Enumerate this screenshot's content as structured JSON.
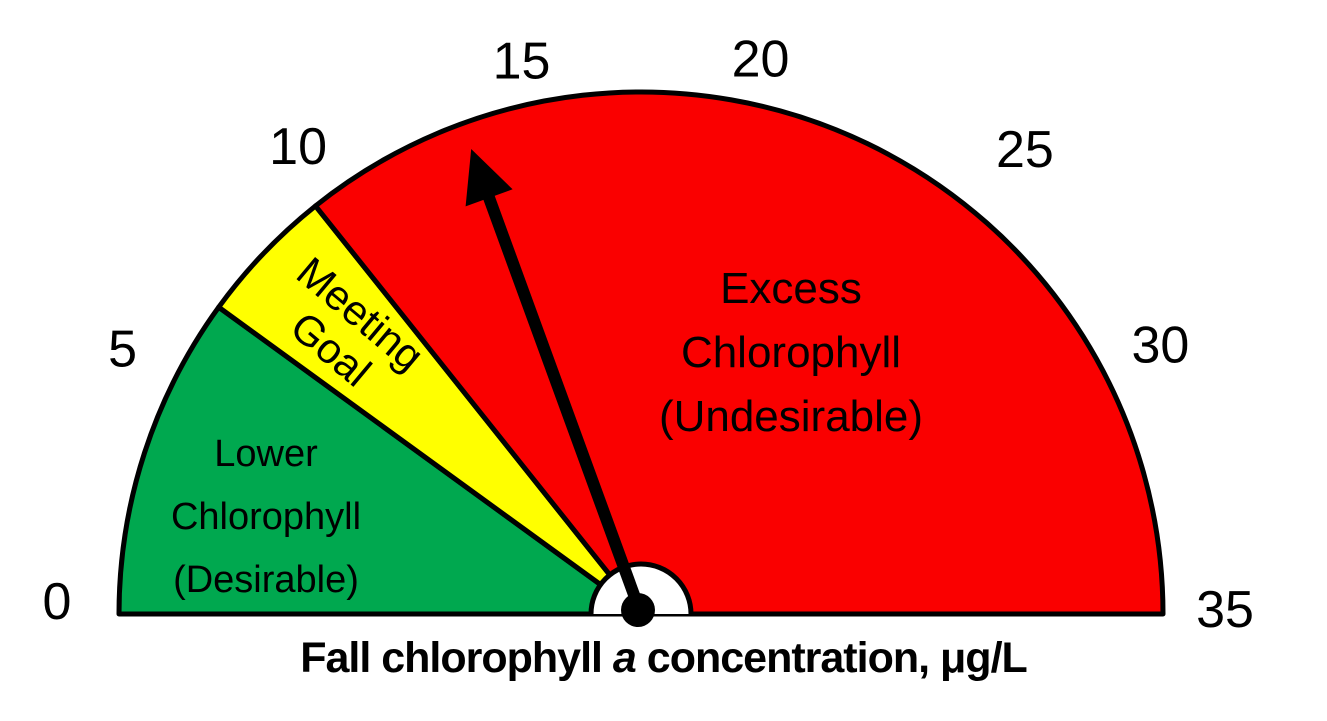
{
  "chart_data": {
    "type": "gauge",
    "title": {
      "prefix": "Fall chlorophyll ",
      "italic_word": "a",
      "suffix": " concentration, μg/L",
      "full": "Fall chlorophyll a concentration, μg/L"
    },
    "min": 0,
    "max": 35,
    "ticks": [
      0,
      5,
      10,
      15,
      20,
      25,
      30,
      35
    ],
    "zones": [
      {
        "from": 0,
        "to": 7,
        "color": "#00A84F",
        "label": "Lower Chlorophyll (Desirable)",
        "label_lines": [
          "Lower",
          "Chlorophyll",
          "(Desirable)"
        ]
      },
      {
        "from": 7,
        "to": 10,
        "color": "#FFFF00",
        "label": "Meeting Goal",
        "label_lines": [
          "Meeting",
          "Goal"
        ]
      },
      {
        "from": 10,
        "to": 35,
        "color": "#FA0000",
        "label": "Excess Chlorophyll (Undesirable)",
        "label_lines": [
          "Excess",
          "Chlorophyll",
          "(Undesirable)"
        ]
      }
    ],
    "needle_value": 13.6,
    "outline_color": "#000000",
    "needle_color": "#000000",
    "tick_label_color": "#000000",
    "zone_label_color": "#000000",
    "background_color": "#FFFFFF"
  }
}
